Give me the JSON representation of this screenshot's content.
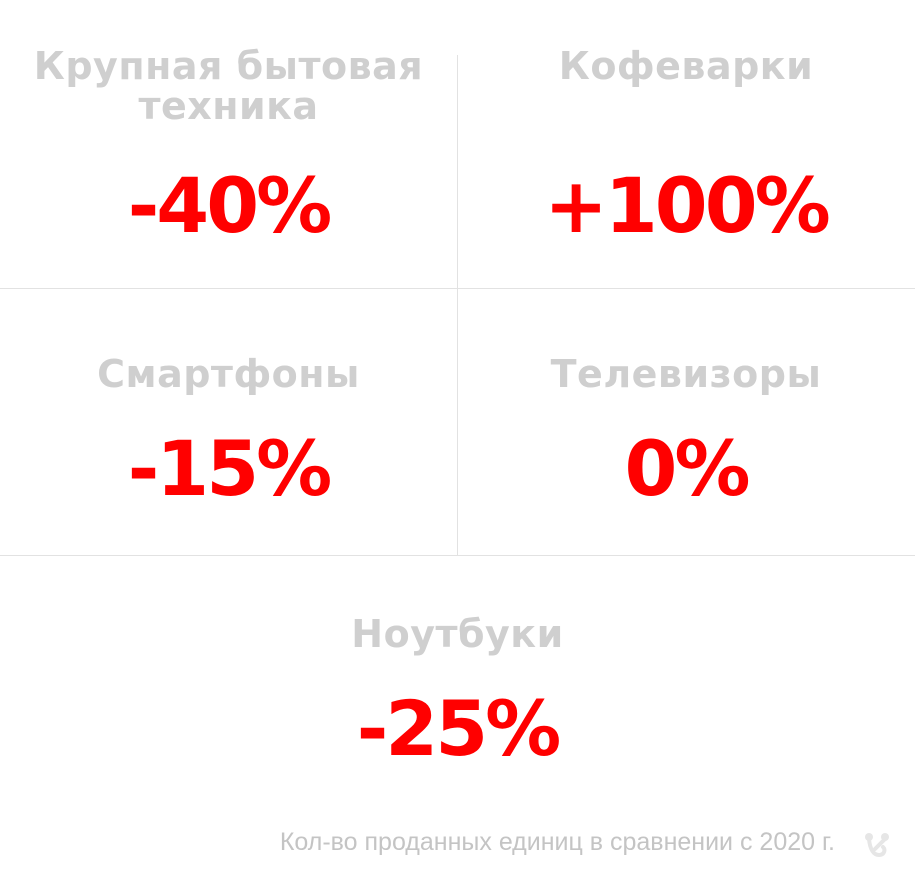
{
  "items": [
    {
      "title": "Крупная бытовая техника",
      "value": "-40%"
    },
    {
      "title": "Кофеварки",
      "value": "+100%"
    },
    {
      "title": "Смартфоны",
      "value": "-15%"
    },
    {
      "title": "Телевизоры",
      "value": "0%"
    },
    {
      "title": "Ноутбуки",
      "value": "-25%"
    }
  ],
  "footer": "Кол-во проданных единиц в сравнении с 2020 г.",
  "colors": {
    "value": "#ff0000",
    "title": "#cfcfcf",
    "divider": "#e2e2e2"
  },
  "logo_icon": "brand-logo-icon"
}
